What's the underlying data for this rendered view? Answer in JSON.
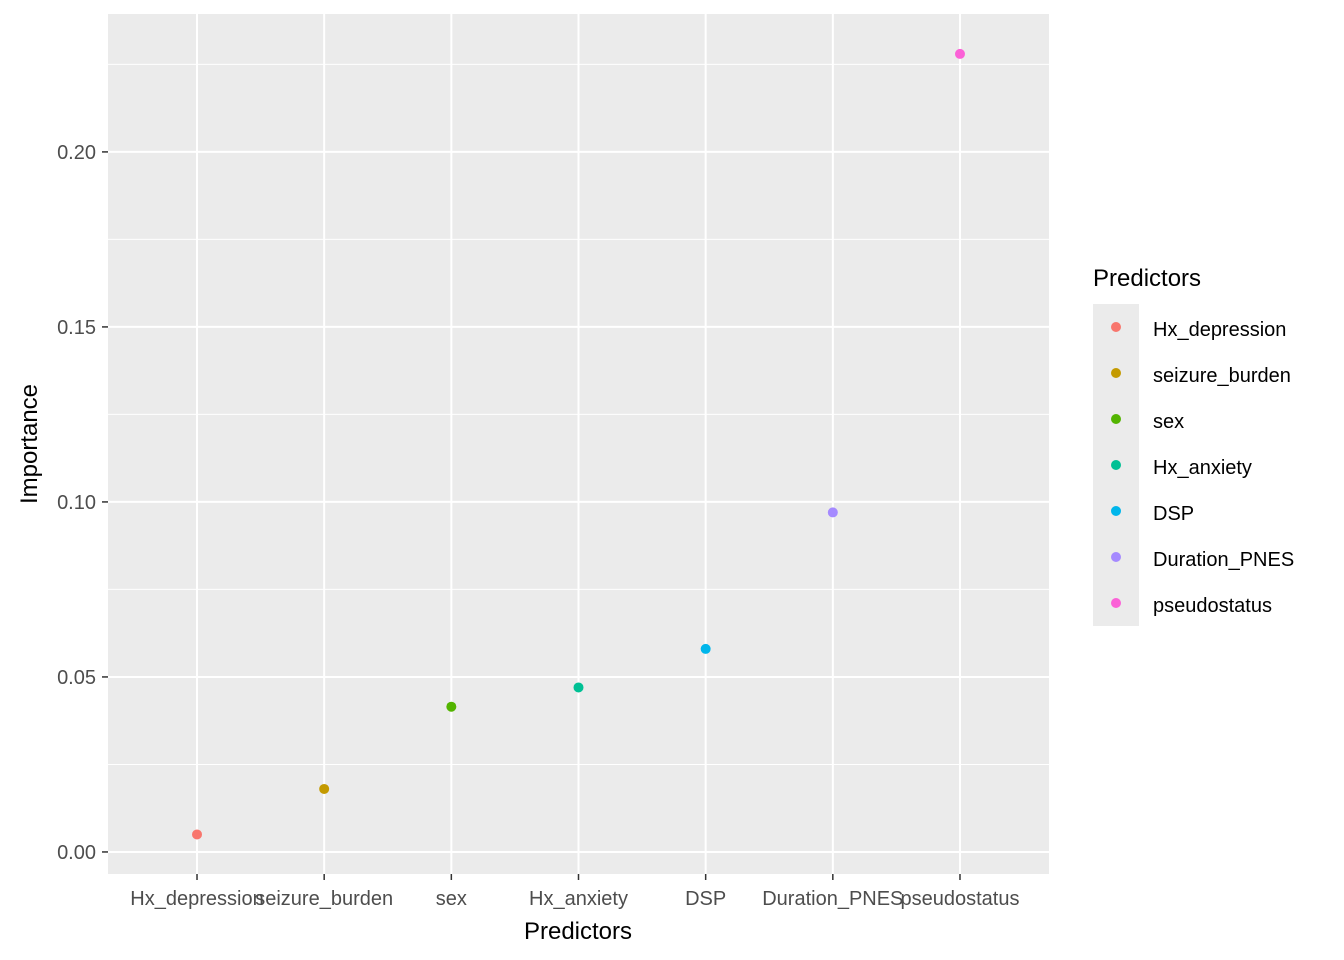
{
  "chart_data": {
    "type": "scatter",
    "xlabel": "Predictors",
    "ylabel": "Importance",
    "categories": [
      "Hx_depression",
      "seizure_burden",
      "sex",
      "Hx_anxiety",
      "DSP",
      "Duration_PNES",
      "pseudostatus"
    ],
    "values": [
      0.005,
      0.018,
      0.0415,
      0.047,
      0.058,
      0.097,
      0.228
    ],
    "colors": [
      "#F8766D",
      "#C49A00",
      "#53B400",
      "#00C094",
      "#00B6EB",
      "#A58AFF",
      "#FB61D7"
    ],
    "yticks": [
      "0.00",
      "0.05",
      "0.10",
      "0.15",
      "0.20"
    ],
    "ytick_values": [
      0,
      0.05,
      0.1,
      0.15,
      0.2
    ],
    "ylim": [
      -0.0063,
      0.2394
    ],
    "grid": true,
    "panel_background": "#EBEBEB",
    "legend": {
      "title": "Predictors",
      "placement": "right",
      "entries": [
        "Hx_depression",
        "seizure_burden",
        "sex",
        "Hx_anxiety",
        "DSP",
        "Duration_PNES",
        "pseudostatus"
      ]
    }
  }
}
